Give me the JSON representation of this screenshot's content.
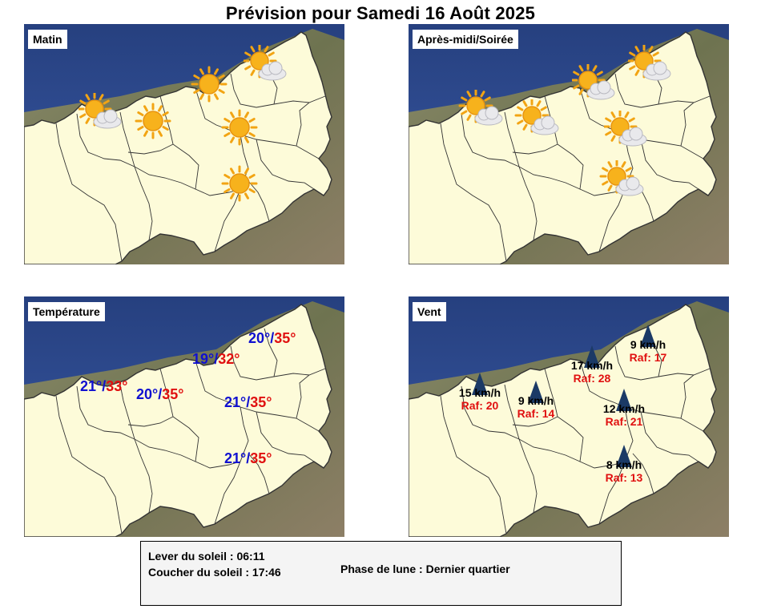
{
  "title": "Prévision pour Samedi 16 Août 2025",
  "panels": {
    "morning": {
      "label": "Matin",
      "icons": [
        "sun-cloud-icon",
        "sun-icon",
        "sun-icon",
        "sun-icon",
        "sun-icon",
        "sun-cloud-icon"
      ]
    },
    "afternoon": {
      "label": "Après-midi/Soirée",
      "icons": [
        "sun-cloud-icon",
        "sun-cloud-icon",
        "sun-cloud-icon",
        "sun-cloud-icon",
        "sun-cloud-icon",
        "sun-cloud-icon"
      ]
    },
    "temperature": {
      "label": "Température",
      "items": [
        {
          "min": "21°",
          "max": "33°"
        },
        {
          "min": "20°",
          "max": "35°"
        },
        {
          "min": "19°",
          "max": "32°"
        },
        {
          "min": "20°",
          "max": "35°"
        },
        {
          "min": "21°",
          "max": "35°"
        },
        {
          "min": "21°",
          "max": "35°"
        }
      ]
    },
    "wind": {
      "label": "Vent",
      "items": [
        {
          "speed": "15 km/h",
          "gust": "Raf: 20"
        },
        {
          "speed": "9 km/h",
          "gust": "Raf: 14"
        },
        {
          "speed": "17 km/h",
          "gust": "Raf: 28"
        },
        {
          "speed": "9 km/h",
          "gust": "Raf: 17"
        },
        {
          "speed": "12 km/h",
          "gust": "Raf: 21"
        },
        {
          "speed": "8 km/h",
          "gust": "Raf: 13"
        }
      ]
    }
  },
  "info": {
    "sunrise": "Lever du soleil : 06:11",
    "sunset": "Coucher du soleil : 17:46",
    "moon": "Phase de lune : Dernier quartier"
  },
  "colors": {
    "sea": "#2f4f9a",
    "land": "#fdfbd9",
    "border": "#333333",
    "temp_min": "#1010d0",
    "temp_max": "#e01010",
    "wind_arrow": "#1b3a66"
  }
}
